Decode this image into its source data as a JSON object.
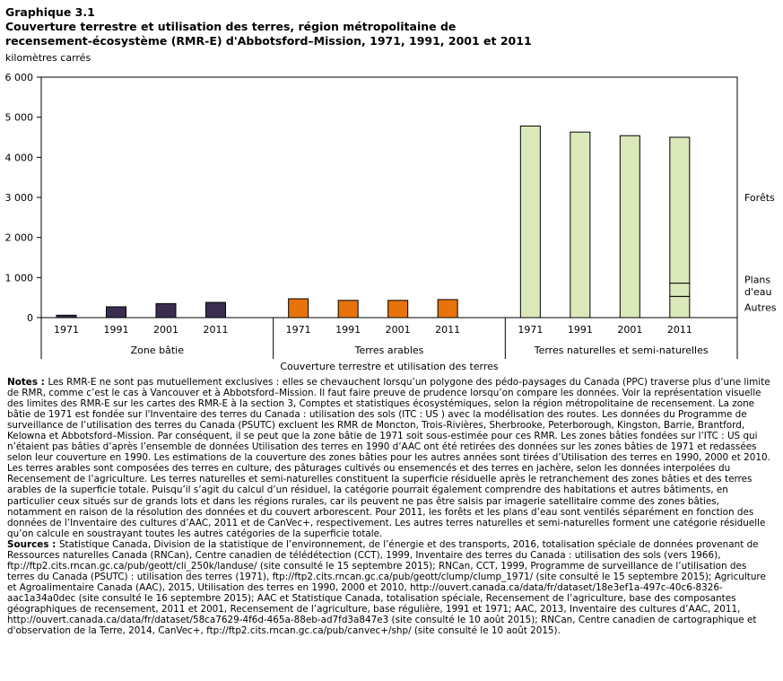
{
  "header": {
    "label": "Graphique  3.1",
    "title_line1": "Couverture terrestre et utilisation des terres, région métropolitaine de",
    "title_line2": "recensement-écosystème (RMR-E) d'Abbotsford–Mission, 1971, 1991, 2001 et 2011"
  },
  "colors": {
    "built": "#3b2d4f",
    "arable": "#e8730c",
    "natural": "#dbe8b9",
    "stroke": "#000000"
  },
  "chart_data": {
    "type": "bar",
    "title": "Couverture terrestre et utilisation des terres, région métropolitaine de recensement-écosystème (RMR-E) d'Abbotsford–Mission, 1971, 1991, 2001 et 2011",
    "ylabel": "kilomètres carrés",
    "xlabel": "Couverture terrestre et utilisation des terres",
    "ylim": [
      0,
      6000
    ],
    "yticks": [
      0,
      1000,
      2000,
      3000,
      4000,
      5000,
      6000
    ],
    "ytick_labels": [
      "0",
      "1 000",
      "2 000",
      "3 000",
      "4 000",
      "5 000",
      "6 000"
    ],
    "groups": [
      {
        "name": "Zone bâtie",
        "color_key": "built",
        "categories": [
          "1971",
          "1991",
          "2001",
          "2011"
        ],
        "values": [
          60,
          270,
          350,
          380
        ]
      },
      {
        "name": "Terres arables",
        "color_key": "arable",
        "categories": [
          "1971",
          "1991",
          "2001",
          "2011"
        ],
        "values": [
          470,
          430,
          430,
          450
        ]
      },
      {
        "name": "Terres naturelles et semi-naturelles",
        "color_key": "natural",
        "categories": [
          "1971",
          "1991",
          "2001",
          "2011"
        ],
        "values": [
          4780,
          4630,
          4540,
          4500
        ],
        "stacked_2011": [
          {
            "name": "Autres",
            "value": 530
          },
          {
            "name": "Plans d'eau",
            "value": 330
          },
          {
            "name": "Forêts",
            "value": 3640
          }
        ]
      }
    ],
    "annotations": [
      {
        "text": "Forêts",
        "value": 3000
      },
      {
        "text": "Plans",
        "value": 950
      },
      {
        "text": "d'eau",
        "value": 650
      },
      {
        "text": "Autres",
        "value": 260
      }
    ]
  },
  "notes": {
    "heading": "Notes : ",
    "text": "Les RMR-E ne sont pas mutuellement exclusives : elles se chevauchent lorsqu’un polygone des pédo-paysages du Canada (PPC) traverse plus d’une limite de RMR, comme c’est le cas à Vancouver et à Abbotsford–Mission. Il faut faire preuve de prudence lorsqu’on compare les données. Voir la représentation visuelle des limites des RMR-E sur les cartes des RMR-E à la section 3, Comptes et statistiques écosystémiques, selon la région métropolitaine de recensement. La zone bâtie de 1971 est fondée sur l'Inventaire des terres du Canada : utilisation des sols (ITC : US ) avec la modélisation des routes. Les données du Programme de surveillance de l’utilisation des terres du Canada (PSUTC) excluent les RMR de Moncton, Trois-Rivières, Sherbrooke, Peterborough, Kingston, Barrie, Brantford, Kelowna et Abbotsford–Mission. Par conséquent, il se peut que la zone bâtie de 1971 soit sous-estimée pour ces RMR. Les zones bâties fondées sur l’ITC : US qui n’étaient pas bâties d’après l’ensemble de données Utilisation des terres en 1990 d’AAC ont été retirées des données sur les zones bâties de 1971 et redassées selon leur couverture en 1990. Les estimations de la couverture des zones bâties pour les autres années sont tirées d’Utilisation des terres en 1990, 2000 et 2010. Les terres arables sont composées des terres en culture, des pâturages cultivés ou ensemencés et des terres en jachère, selon les données interpolées du Recensement de l’agriculture. Les terres naturelles et semi-naturelles constituent la superficie résiduelle après le retranchement des zones bâties et des terres arables de la superficie totale. Puisqu’il s’agit du calcul d’un résiduel, la catégorie pourrait également comprendre des habitations et autres bâtiments, en particulier ceux situés sur de grands lots et dans les régions rurales, car ils peuvent ne pas être saisis par imagerie satellitaire comme des zones bâties, notamment en raison de la résolution des données et du couvert arborescent. Pour 2011, les forêts et les plans d’eau sont ventilés séparément en fonction des données de l’Inventaire des cultures d’AAC, 2011 et de CanVec+, respectivement. Les autres terres naturelles et semi-naturelles forment une catégorie résiduelle qu’on calcule en soustrayant toutes les autres catégories de la superficie totale."
  },
  "sources": {
    "heading": "Sources : ",
    "text": "Statistique Canada, Division de la statistique de l’environnement, de l’énergie et des transports, 2016, totalisation spéciale de données provenant de Ressources naturelles Canada (RNCan), Centre canadien de télédétection (CCT), 1999, Inventaire des terres du Canada : utilisation des sols (vers 1966), ftp://ftp2.cits.rncan.gc.ca/pub/geott/cli_250k/landuse/ (site consulté le 15 septembre 2015); RNCan, CCT, 1999, Programme de surveillance de l’utilisation des terres du Canada (PSUTC) : utilisation des terres (1971), ftp://ftp2.cits.rncan.gc.ca/pub/geott/clump/clump_1971/ (site consulté le 15 septembre 2015); Agriculture et Agroalimentaire Canada (AAC), 2015, Utilisation des terres en 1990, 2000 et 2010, http://ouvert.canada.ca/data/fr/dataset/18e3ef1a-497c-40c6-8326-aac1a34a0dec (site consulté le 16 septembre 2015); AAC et Statistique Canada, totalisation spéciale, Recensement de l’agriculture, base des composantes géographiques de recensement, 2011 et 2001, Recensement de l’agriculture, base régulière, 1991 et 1971; AAC, 2013, Inventaire des cultures d’AAC, 2011, http://ouvert.canada.ca/data/fr/dataset/58ca7629-4f6d-465a-88eb-ad7fd3a847e3 (site consulté le 10 août 2015); RNCan, Centre canadien de cartographique et d'observation de la Terre, 2014, CanVec+, ftp://ftp2.cits.rncan.gc.ca/pub/canvec+/shp/ (site consulté le 10 août 2015)."
  }
}
